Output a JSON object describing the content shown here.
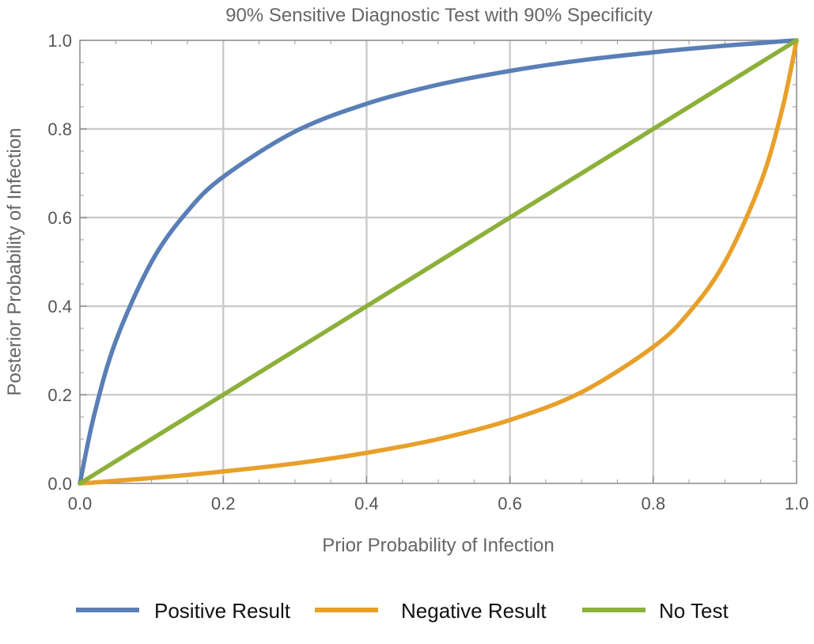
{
  "chart_data": {
    "type": "line",
    "title": "90% Sensitive Diagnostic Test with 90% Specificity",
    "xlabel": "Prior Probability of Infection",
    "ylabel": "Posterior Probability of Infection",
    "xlim": [
      0,
      1
    ],
    "ylim": [
      0,
      1
    ],
    "x_ticks": [
      "0.0",
      "0.2",
      "0.4",
      "0.6",
      "0.8",
      "1.0"
    ],
    "y_ticks": [
      "0.0",
      "0.2",
      "0.4",
      "0.6",
      "0.8",
      "1.0"
    ],
    "grid": true,
    "legend_position": "bottom",
    "x": [
      0.0,
      0.02,
      0.05,
      0.1,
      0.15,
      0.2,
      0.3,
      0.4,
      0.5,
      0.6,
      0.7,
      0.8,
      0.85,
      0.9,
      0.95,
      0.98,
      1.0
    ],
    "series": [
      {
        "name": "Positive Result",
        "color": "#5a7fb6",
        "values": [
          0.0,
          0.155,
          0.321,
          0.5,
          0.614,
          0.692,
          0.794,
          0.857,
          0.9,
          0.931,
          0.955,
          0.973,
          0.981,
          0.988,
          0.994,
          0.998,
          1.0
        ]
      },
      {
        "name": "Negative Result",
        "color": "#e8a02a",
        "values": [
          0.0,
          0.002,
          0.006,
          0.012,
          0.019,
          0.027,
          0.045,
          0.069,
          0.1,
          0.143,
          0.206,
          0.308,
          0.386,
          0.5,
          0.679,
          0.845,
          1.0
        ]
      },
      {
        "name": "No Test",
        "color": "#8db03a",
        "values": [
          0.0,
          0.02,
          0.05,
          0.1,
          0.15,
          0.2,
          0.3,
          0.4,
          0.5,
          0.6,
          0.7,
          0.8,
          0.85,
          0.9,
          0.95,
          0.98,
          1.0
        ]
      }
    ]
  }
}
